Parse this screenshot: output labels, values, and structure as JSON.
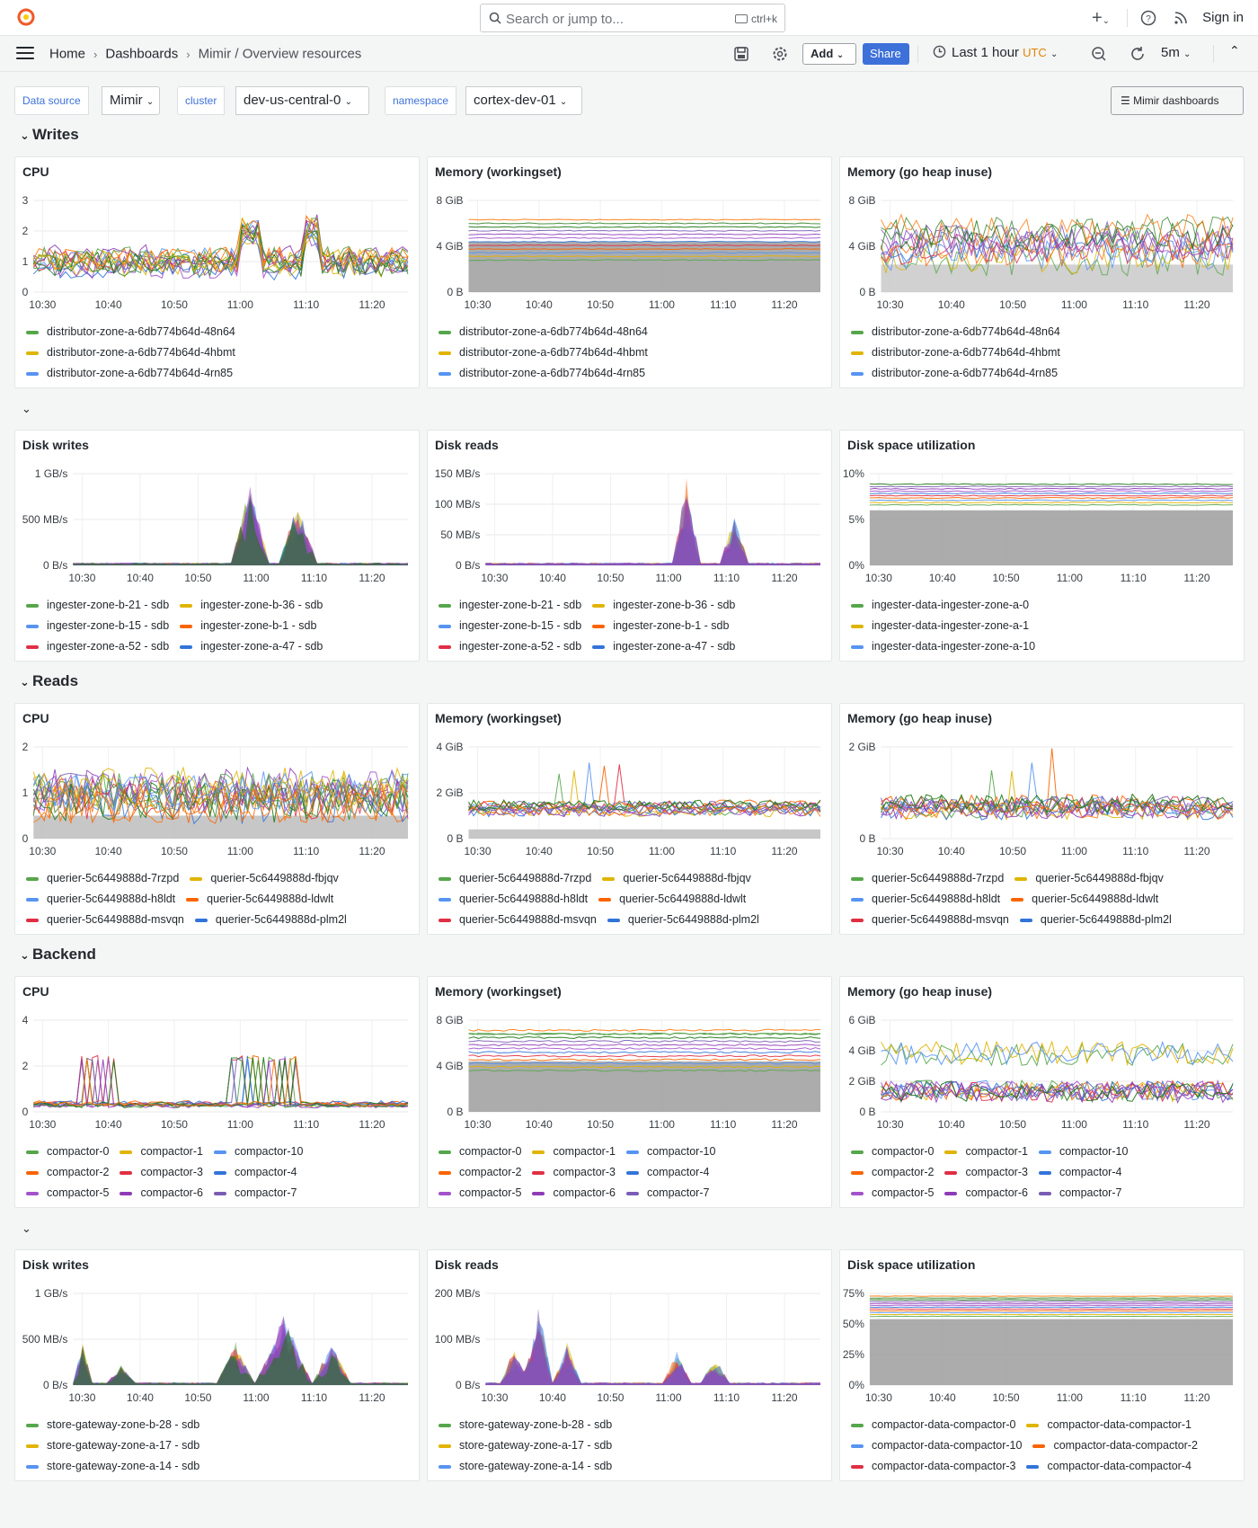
{
  "topbar": {
    "search_placeholder": "Search or jump to...",
    "search_shortcut": "ctrl+k",
    "sign_in": "Sign in",
    "plus": "+"
  },
  "nav": {
    "breadcrumbs": [
      "Home",
      "Dashboards",
      "Mimir / Overview resources"
    ],
    "add_label": "Add",
    "share_label": "Share",
    "time_range": "Last 1 hour",
    "timezone": "UTC",
    "refresh": "5m"
  },
  "variables": [
    {
      "label": "Data source",
      "value": "Mimir"
    },
    {
      "label": "cluster",
      "value": "dev-us-central-0"
    },
    {
      "label": "namespace",
      "value": "cortex-dev-01"
    }
  ],
  "mimir_dashboards": "Mimir dashboards",
  "colors": {
    "accent": "#3d71d9",
    "palette": [
      "#56a64b",
      "#e0b400",
      "#5794f2",
      "#fa6400",
      "#e02f44",
      "#3274d9",
      "#a352cc",
      "#8f3bb8",
      "#7b5cb4",
      "#19730e",
      "#37872d",
      "#ff780a"
    ]
  },
  "rows": {
    "writes": "Writes",
    "reads": "Reads",
    "backend": "Backend"
  },
  "time_ticks": [
    "10:30",
    "10:40",
    "10:50",
    "11:00",
    "11:10",
    "11:20"
  ],
  "panels": {
    "w_cpu": {
      "title": "CPU",
      "y_ticks": [
        "3",
        "2",
        "1",
        "0"
      ],
      "legend": [
        "distributor-zone-a-6db774b64d-48n64",
        "distributor-zone-a-6db774b64d-4hbmt",
        "distributor-zone-a-6db774b64d-4rn85"
      ]
    },
    "w_mem": {
      "title": "Memory (workingset)",
      "y_ticks": [
        "8 GiB",
        "4 GiB",
        "0 B"
      ],
      "legend": [
        "distributor-zone-a-6db774b64d-48n64",
        "distributor-zone-a-6db774b64d-4hbmt",
        "distributor-zone-a-6db774b64d-4rn85"
      ]
    },
    "w_heap": {
      "title": "Memory (go heap inuse)",
      "y_ticks": [
        "8 GiB",
        "4 GiB",
        "0 B"
      ],
      "legend": [
        "distributor-zone-a-6db774b64d-48n64",
        "distributor-zone-a-6db774b64d-4hbmt",
        "distributor-zone-a-6db774b64d-4rn85"
      ]
    },
    "w_dw": {
      "title": "Disk writes",
      "y_ticks": [
        "1 GB/s",
        "500 MB/s",
        "0 B/s"
      ],
      "legend": [
        "ingester-zone-b-21 - sdb",
        "ingester-zone-b-36 - sdb",
        "ingester-zone-b-15 - sdb",
        "ingester-zone-b-1 - sdb",
        "ingester-zone-a-52 - sdb",
        "ingester-zone-a-47 - sdb"
      ]
    },
    "w_dr": {
      "title": "Disk reads",
      "y_ticks": [
        "150 MB/s",
        "100 MB/s",
        "50 MB/s",
        "0 B/s"
      ],
      "legend": [
        "ingester-zone-b-21 - sdb",
        "ingester-zone-b-36 - sdb",
        "ingester-zone-b-15 - sdb",
        "ingester-zone-b-1 - sdb",
        "ingester-zone-a-52 - sdb",
        "ingester-zone-a-47 - sdb"
      ]
    },
    "w_ds": {
      "title": "Disk space utilization",
      "y_ticks": [
        "10%",
        "5%",
        "0%"
      ],
      "legend": [
        "ingester-data-ingester-zone-a-0",
        "ingester-data-ingester-zone-a-1",
        "ingester-data-ingester-zone-a-10"
      ]
    },
    "r_cpu": {
      "title": "CPU",
      "y_ticks": [
        "2",
        "1",
        "0"
      ],
      "legend": [
        "querier-5c6449888d-7rzpd",
        "querier-5c6449888d-fbjqv",
        "querier-5c6449888d-h8ldt",
        "querier-5c6449888d-ldwlt",
        "querier-5c6449888d-msvqn",
        "querier-5c6449888d-plm2l"
      ]
    },
    "r_mem": {
      "title": "Memory (workingset)",
      "y_ticks": [
        "4 GiB",
        "2 GiB",
        "0 B"
      ],
      "legend": [
        "querier-5c6449888d-7rzpd",
        "querier-5c6449888d-fbjqv",
        "querier-5c6449888d-h8ldt",
        "querier-5c6449888d-ldwlt",
        "querier-5c6449888d-msvqn",
        "querier-5c6449888d-plm2l"
      ]
    },
    "r_heap": {
      "title": "Memory (go heap inuse)",
      "y_ticks": [
        "2 GiB",
        "0 B"
      ],
      "legend": [
        "querier-5c6449888d-7rzpd",
        "querier-5c6449888d-fbjqv",
        "querier-5c6449888d-h8ldt",
        "querier-5c6449888d-ldwlt",
        "querier-5c6449888d-msvqn",
        "querier-5c6449888d-plm2l"
      ]
    },
    "b_cpu": {
      "title": "CPU",
      "y_ticks": [
        "4",
        "2",
        "0"
      ],
      "legend": [
        "compactor-0",
        "compactor-1",
        "compactor-10",
        "compactor-2",
        "compactor-3",
        "compactor-4",
        "compactor-5",
        "compactor-6",
        "compactor-7"
      ]
    },
    "b_mem": {
      "title": "Memory (workingset)",
      "y_ticks": [
        "8 GiB",
        "4 GiB",
        "0 B"
      ],
      "legend": [
        "compactor-0",
        "compactor-1",
        "compactor-10",
        "compactor-2",
        "compactor-3",
        "compactor-4",
        "compactor-5",
        "compactor-6",
        "compactor-7"
      ]
    },
    "b_heap": {
      "title": "Memory (go heap inuse)",
      "y_ticks": [
        "6 GiB",
        "4 GiB",
        "2 GiB",
        "0 B"
      ],
      "legend": [
        "compactor-0",
        "compactor-1",
        "compactor-10",
        "compactor-2",
        "compactor-3",
        "compactor-4",
        "compactor-5",
        "compactor-6",
        "compactor-7"
      ]
    },
    "b_dw": {
      "title": "Disk writes",
      "y_ticks": [
        "1 GB/s",
        "500 MB/s",
        "0 B/s"
      ],
      "legend": [
        "store-gateway-zone-b-28 - sdb",
        "store-gateway-zone-a-17 - sdb",
        "store-gateway-zone-a-14 - sdb"
      ]
    },
    "b_dr": {
      "title": "Disk reads",
      "y_ticks": [
        "200 MB/s",
        "100 MB/s",
        "0 B/s"
      ],
      "legend": [
        "store-gateway-zone-b-28 - sdb",
        "store-gateway-zone-a-17 - sdb",
        "store-gateway-zone-a-14 - sdb"
      ]
    },
    "b_ds": {
      "title": "Disk space utilization",
      "y_ticks": [
        "75%",
        "50%",
        "25%",
        "0%"
      ],
      "legend": [
        "compactor-data-compactor-0",
        "compactor-data-compactor-1",
        "compactor-data-compactor-10",
        "compactor-data-compactor-2",
        "compactor-data-compactor-3",
        "compactor-data-compactor-4"
      ]
    }
  }
}
